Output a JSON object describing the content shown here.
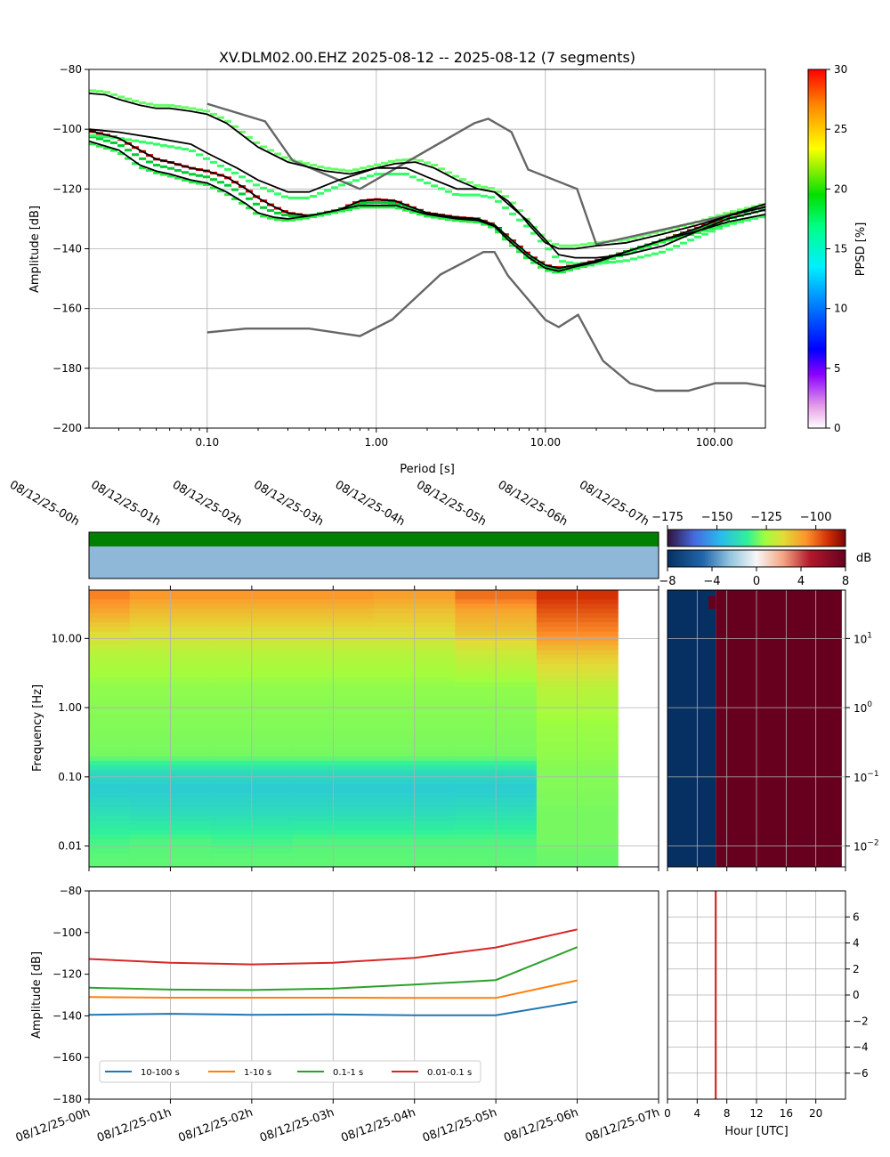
{
  "title": "XV.DLM02.00.EHZ   2025-08-12 -- 2025-08-12  (7 segments)",
  "chart_data": [
    {
      "id": "ppsd",
      "type": "line",
      "title": "XV.DLM02.00.EHZ   2025-08-12 -- 2025-08-12  (7 segments)",
      "xlabel": "Period [s]",
      "ylabel": "Amplitude [dB]",
      "xscale": "log",
      "xlim": [
        0.02,
        200
      ],
      "ylim": [
        -200,
        -80
      ],
      "xticks": [
        0.1,
        1,
        10,
        100
      ],
      "xtick_labels": [
        "0.10",
        "1.00",
        "10.00",
        "100.00"
      ],
      "yticks": [
        -200,
        -180,
        -160,
        -140,
        -120,
        -100,
        -80
      ],
      "grid": true,
      "colorbar": {
        "label": "PPSD [%]",
        "range": [
          0,
          30
        ],
        "ticks": [
          0,
          5,
          10,
          15,
          20,
          25,
          30
        ]
      },
      "noise_models": [
        {
          "name": "NHNM",
          "x": [
            0.1,
            0.22,
            0.32,
            0.8,
            3.8,
            4.6,
            6.3,
            7.9,
            15.4,
            20,
            354.8
          ],
          "y": [
            -91.5,
            -97.4,
            -110.5,
            -120,
            -98,
            -96.5,
            -101,
            -113.5,
            -120,
            -138.5,
            -126
          ]
        },
        {
          "name": "NLNM",
          "x": [
            0.1,
            0.17,
            0.4,
            0.8,
            1.24,
            2.4,
            4.3,
            5,
            6,
            10,
            12,
            15.6,
            21.9,
            31.6,
            45,
            70,
            101,
            154,
            200
          ],
          "y": [
            -168,
            -166.7,
            -166.7,
            -169.2,
            -163.7,
            -148.6,
            -141.1,
            -141.1,
            -149,
            -163.8,
            -166.2,
            -162.1,
            -177.5,
            -185,
            -187.5,
            -187.5,
            -185,
            -185,
            -186
          ]
        }
      ],
      "percentiles": [
        {
          "name": "max",
          "x": [
            0.02,
            0.025,
            0.03,
            0.04,
            0.05,
            0.06,
            0.08,
            0.1,
            0.13,
            0.2,
            0.3,
            0.5,
            0.7,
            1,
            1.3,
            1.7,
            2.2,
            3,
            4,
            5,
            6,
            7,
            8,
            10,
            12,
            15,
            20,
            30,
            50,
            80,
            120,
            200
          ],
          "y": [
            -88,
            -88.5,
            -90,
            -92,
            -93,
            -93,
            -94,
            -95,
            -98,
            -106,
            -111,
            -114,
            -115,
            -113,
            -111.5,
            -111,
            -113,
            -117,
            -120,
            -121,
            -124,
            -128,
            -132,
            -138,
            -140,
            -140,
            -139,
            -138,
            -135,
            -132,
            -129,
            -126
          ]
        },
        {
          "name": "p95",
          "x": [
            0.02,
            0.03,
            0.05,
            0.08,
            0.1,
            0.15,
            0.2,
            0.3,
            0.4,
            0.6,
            1,
            1.5,
            2,
            3,
            4,
            5,
            6,
            8,
            10,
            12,
            15,
            20,
            30,
            50,
            80,
            120,
            200
          ],
          "y": [
            -100,
            -101,
            -103,
            -105,
            -108,
            -113,
            -117,
            -121,
            -121,
            -117,
            -113,
            -113,
            -116,
            -120,
            -120,
            -121,
            -125,
            -131,
            -137,
            -142,
            -143,
            -143,
            -142,
            -139,
            -134,
            -130,
            -127
          ]
        },
        {
          "name": "mean",
          "x": [
            0.02,
            0.03,
            0.04,
            0.05,
            0.06,
            0.08,
            0.1,
            0.13,
            0.17,
            0.2,
            0.25,
            0.3,
            0.4,
            0.6,
            0.8,
            1,
            1.3,
            1.6,
            2,
            3,
            4,
            5,
            6,
            8,
            10,
            12,
            15,
            20,
            30,
            50,
            80,
            120,
            200
          ],
          "y": [
            -100.5,
            -103,
            -107,
            -110,
            -111,
            -113,
            -114,
            -116,
            -120,
            -123,
            -126,
            -128,
            -129,
            -127,
            -124,
            -123.5,
            -124,
            -126,
            -128,
            -129.5,
            -130,
            -132,
            -136,
            -142,
            -145.5,
            -146.5,
            -145.5,
            -144,
            -141,
            -137,
            -133,
            -129,
            -125
          ]
        },
        {
          "name": "min",
          "x": [
            0.02,
            0.03,
            0.04,
            0.05,
            0.06,
            0.08,
            0.1,
            0.13,
            0.17,
            0.2,
            0.25,
            0.3,
            0.4,
            0.6,
            0.8,
            1,
            1.3,
            1.6,
            2,
            3,
            4,
            5,
            6,
            8,
            10,
            12,
            15,
            20,
            30,
            50,
            80,
            120,
            200
          ],
          "y": [
            -104,
            -107,
            -112,
            -114,
            -115,
            -117,
            -118,
            -121,
            -125,
            -128,
            -129.5,
            -130,
            -129,
            -127,
            -125.5,
            -125.5,
            -125.5,
            -127,
            -128.5,
            -130,
            -130.5,
            -132.5,
            -137,
            -143,
            -146.5,
            -147.5,
            -146,
            -144.5,
            -141,
            -137,
            -134,
            -131,
            -128.5
          ]
        }
      ]
    },
    {
      "id": "spectrogram",
      "type": "heatmap",
      "ylabel": "Frequency [Hz]",
      "yscale": "log",
      "ylim": [
        0.005,
        50
      ],
      "yticks": [
        0.01,
        0.1,
        1,
        10
      ],
      "ytick_labels": [
        "0.01",
        "0.10",
        "1.00",
        "10.00"
      ],
      "x_hours": [
        0,
        7
      ],
      "x_tick_labels": [
        "08/12/25-00h",
        "08/12/25-01h",
        "08/12/25-02h",
        "08/12/25-03h",
        "08/12/25-04h",
        "08/12/25-05h",
        "08/12/25-06h",
        "08/12/25-07h"
      ],
      "colorbar_db": {
        "range": [
          -175,
          -85
        ],
        "ticks": [
          -175,
          -150,
          -125,
          -100
        ]
      },
      "colorbar_diff": {
        "label": "dB",
        "range": [
          -8,
          8
        ],
        "ticks": [
          -8,
          -4,
          0,
          4,
          8
        ]
      },
      "segments_hours": [
        [
          0,
          0.5
        ],
        [
          0.5,
          1.5
        ],
        [
          1.5,
          2.5
        ],
        [
          2.5,
          3.5
        ],
        [
          3.5,
          4.5
        ],
        [
          4.5,
          5.5
        ],
        [
          5.5,
          6.5
        ]
      ],
      "levels_db": {
        "freq_hz": [
          40,
          25,
          12,
          6,
          2,
          0.6,
          0.2,
          0.12,
          0.07,
          0.03,
          0.012,
          0.007
        ],
        "columns": [
          [
            -103,
            -108,
            -116,
            -123,
            -127,
            -128,
            -129,
            -140,
            -144,
            -139,
            -133,
            -131
          ],
          [
            -106,
            -111,
            -117,
            -123,
            -127,
            -128,
            -129,
            -140,
            -144,
            -140,
            -132,
            -131
          ],
          [
            -106,
            -111,
            -117,
            -123,
            -127,
            -128,
            -129,
            -140,
            -144,
            -140,
            -133,
            -131
          ],
          [
            -106,
            -111,
            -117,
            -123,
            -127,
            -128,
            -129,
            -140,
            -144,
            -140,
            -132,
            -131
          ],
          [
            -107,
            -112,
            -117,
            -123,
            -127,
            -128,
            -129,
            -140,
            -144,
            -140,
            -132,
            -131
          ],
          [
            -101,
            -108,
            -113,
            -120,
            -127,
            -128,
            -129,
            -140,
            -144,
            -139,
            -132,
            -131
          ],
          [
            -94,
            -98,
            -104,
            -113,
            -122,
            -126,
            -127,
            -128,
            -128,
            -129,
            -129,
            -130
          ]
        ]
      },
      "diff_panel": {
        "xlabel": "Hour [UTC]",
        "xlim": [
          0,
          24
        ],
        "xticks": [
          0,
          4,
          8,
          12,
          16,
          20
        ],
        "split_hour": 6.5,
        "value_before": -8,
        "value_after": 8
      }
    },
    {
      "id": "band_amplitudes",
      "type": "line",
      "ylabel": "Amplitude [dB]",
      "ylim": [
        -180,
        -80
      ],
      "yticks": [
        -180,
        -160,
        -140,
        -120,
        -100,
        -80
      ],
      "x_hours": [
        0,
        7
      ],
      "x_tick_labels": [
        "08/12/25-00h",
        "08/12/25-01h",
        "08/12/25-02h",
        "08/12/25-03h",
        "08/12/25-04h",
        "08/12/25-05h",
        "08/12/25-06h",
        "08/12/25-07h"
      ],
      "x": [
        0,
        1,
        2,
        3,
        4,
        5,
        6
      ],
      "legend": "lower-left",
      "series": [
        {
          "name": "10-100 s",
          "values": [
            -139.5,
            -139,
            -139.5,
            -139.3,
            -139.7,
            -139.7,
            -133.2
          ]
        },
        {
          "name": "1-10 s",
          "values": [
            -131,
            -131.3,
            -131.3,
            -131.3,
            -131.4,
            -131.4,
            -123
          ]
        },
        {
          "name": "0.1-1 s",
          "values": [
            -126.5,
            -127.4,
            -127.6,
            -126.9,
            -125,
            -122.8,
            -107
          ]
        },
        {
          "name": "0.01-0.1 s",
          "values": [
            -112.7,
            -114.5,
            -115.3,
            -114.5,
            -112.2,
            -107.2,
            -98.5
          ]
        }
      ],
      "diurnal": {
        "xlabel": "Hour [UTC]",
        "xlim": [
          0,
          24
        ],
        "xticks": [
          0,
          4,
          8,
          12,
          16,
          20
        ],
        "ylim": [
          -8,
          8
        ],
        "yticks": [
          -6,
          -4,
          -2,
          0,
          2,
          4,
          6
        ],
        "line_hour": 6.5
      }
    }
  ]
}
